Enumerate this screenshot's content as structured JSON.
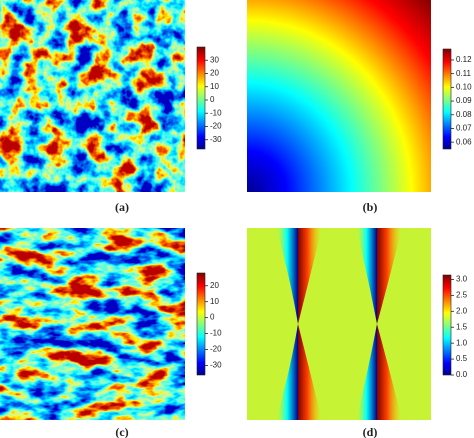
{
  "chart_data": [
    {
      "type": "heatmap",
      "caption": "(a)",
      "ylim": [
        -37,
        40
      ],
      "yticks": [
        -30,
        -20,
        -10,
        0,
        10,
        20,
        30
      ]
    },
    {
      "type": "heatmap",
      "caption": "(b)",
      "ylim": [
        0.055,
        0.128
      ],
      "yticks": [
        0.06,
        0.07,
        0.08,
        0.09,
        {
          "value": 0.1,
          "label": "0.10"
        },
        0.11,
        0.12
      ]
    },
    {
      "type": "heatmap",
      "caption": "(c)",
      "ylim": [
        -36,
        28
      ],
      "yticks": [
        -30,
        -20,
        -10,
        0,
        10,
        20
      ]
    },
    {
      "type": "heatmap",
      "caption": "(d)",
      "ylim": [
        0,
        3.14
      ],
      "yticks": [
        {
          "value": 0,
          "label": "0.0"
        },
        0.5,
        {
          "value": 1,
          "label": "1.0"
        },
        1.5,
        {
          "value": 2,
          "label": "2.0"
        },
        2.5,
        {
          "value": 3,
          "label": "3.0"
        }
      ]
    }
  ]
}
